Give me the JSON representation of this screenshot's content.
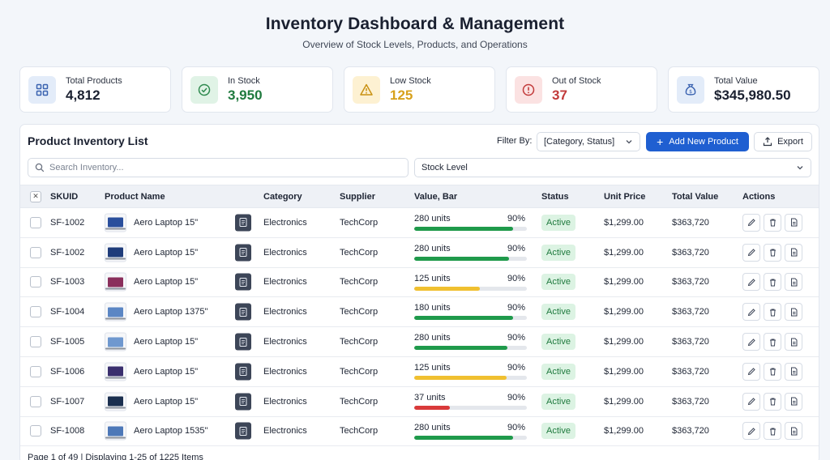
{
  "header": {
    "title": "Inventory Dashboard & Management",
    "subtitle": "Overview of Stock Levels, Products, and Operations"
  },
  "stats": [
    {
      "label": "Total Products",
      "value": "4,812",
      "icon": "grid-icon",
      "icon_bg": "#e3ecf9",
      "icon_color": "#3a62b0",
      "value_color": "#1a2030"
    },
    {
      "label": "In Stock",
      "value": "3,950",
      "icon": "check-circle-icon",
      "icon_bg": "#e0f3e6",
      "icon_color": "#2f8a4f",
      "value_color": "#1f7a3e"
    },
    {
      "label": "Low Stock",
      "value": "125",
      "icon": "warning-icon",
      "icon_bg": "#fdf1d2",
      "icon_color": "#c99112",
      "value_color": "#d7a11c"
    },
    {
      "label": "Out of Stock",
      "value": "37",
      "icon": "alert-circle-icon",
      "icon_bg": "#fbe2e2",
      "icon_color": "#c23a3a",
      "value_color": "#c23a3a"
    },
    {
      "label": "Total Value",
      "value": "$345,980.50",
      "icon": "money-bag-icon",
      "icon_bg": "#e3ecf9",
      "icon_color": "#3a62b0",
      "value_color": "#1a2030"
    }
  ],
  "panel": {
    "title": "Product Inventory List",
    "filter_label": "Filter By:",
    "filter_value": "[Category, Status]",
    "add_label": "Add New Product",
    "export_label": "Export",
    "search_placeholder": "Search Inventory...",
    "stock_level_label": "Stock Level"
  },
  "columns": {
    "skuid": "SKUID",
    "product": "Product Name",
    "category": "Category",
    "supplier": "Supplier",
    "value_bar": "Value, Bar",
    "status": "Status",
    "unit_price": "Unit Price",
    "total_value": "Total Value",
    "actions": "Actions"
  },
  "rows": [
    {
      "sku": "SF-1002",
      "name": "Aero Laptop 15\"",
      "category": "Electronics",
      "supplier": "TechCorp",
      "units": "280 units",
      "pct": "90%",
      "level": 0.88,
      "bar_color": "#1f9a4b",
      "thumb": "#2a4f9c",
      "status": "Active",
      "unit_price": "$1,299.00",
      "total": "$363,720"
    },
    {
      "sku": "SF-1002",
      "name": "Aero Laptop 15\"",
      "category": "Electronics",
      "supplier": "TechCorp",
      "units": "280 units",
      "pct": "90%",
      "level": 0.84,
      "bar_color": "#1f9a4b",
      "thumb": "#1f3c7a",
      "status": "Active",
      "unit_price": "$1,299.00",
      "total": "$363,720"
    },
    {
      "sku": "SF-1003",
      "name": "Aero Laptop 15\"",
      "category": "Electronics",
      "supplier": "TechCorp",
      "units": "125 units",
      "pct": "90%",
      "level": 0.58,
      "bar_color": "#f0c030",
      "thumb": "#8a2f5c",
      "status": "Active",
      "unit_price": "$1,299.00",
      "total": "$363,720"
    },
    {
      "sku": "SF-1004",
      "name": "Aero Laptop 1375\"",
      "category": "Electronics",
      "supplier": "TechCorp",
      "units": "180 units",
      "pct": "90%",
      "level": 0.88,
      "bar_color": "#1f9a4b",
      "thumb": "#5b86c4",
      "status": "Active",
      "unit_price": "$1,299.00",
      "total": "$363,720"
    },
    {
      "sku": "SF-1005",
      "name": "Aero Laptop 15\"",
      "category": "Electronics",
      "supplier": "TechCorp",
      "units": "280 units",
      "pct": "90%",
      "level": 0.83,
      "bar_color": "#1f9a4b",
      "thumb": "#6f98cf",
      "status": "Active",
      "unit_price": "$1,299.00",
      "total": "$363,720"
    },
    {
      "sku": "SF-1006",
      "name": "Aero Laptop 15\"",
      "category": "Electronics",
      "supplier": "TechCorp",
      "units": "125 units",
      "pct": "90%",
      "level": 0.82,
      "bar_color": "#f0c030",
      "thumb": "#3a2f6e",
      "status": "Active",
      "unit_price": "$1,299.00",
      "total": "$363,720"
    },
    {
      "sku": "SF-1007",
      "name": "Aero Laptop 15\"",
      "category": "Electronics",
      "supplier": "TechCorp",
      "units": "37 units",
      "pct": "90%",
      "level": 0.32,
      "bar_color": "#d93a3a",
      "thumb": "#1b2f4f",
      "status": "Active",
      "unit_price": "$1,299.00",
      "total": "$363,720"
    },
    {
      "sku": "SF-1008",
      "name": "Aero Laptop 1535\"",
      "category": "Electronics",
      "supplier": "TechCorp",
      "units": "280 units",
      "pct": "90%",
      "level": 0.88,
      "bar_color": "#1f9a4b",
      "thumb": "#4d78b8",
      "status": "Active",
      "unit_price": "$1,299.00",
      "total": "$363,720"
    }
  ],
  "footer": {
    "pagination": "Page 1 of 49 | Displaying 1-25 of 1225 Items"
  }
}
